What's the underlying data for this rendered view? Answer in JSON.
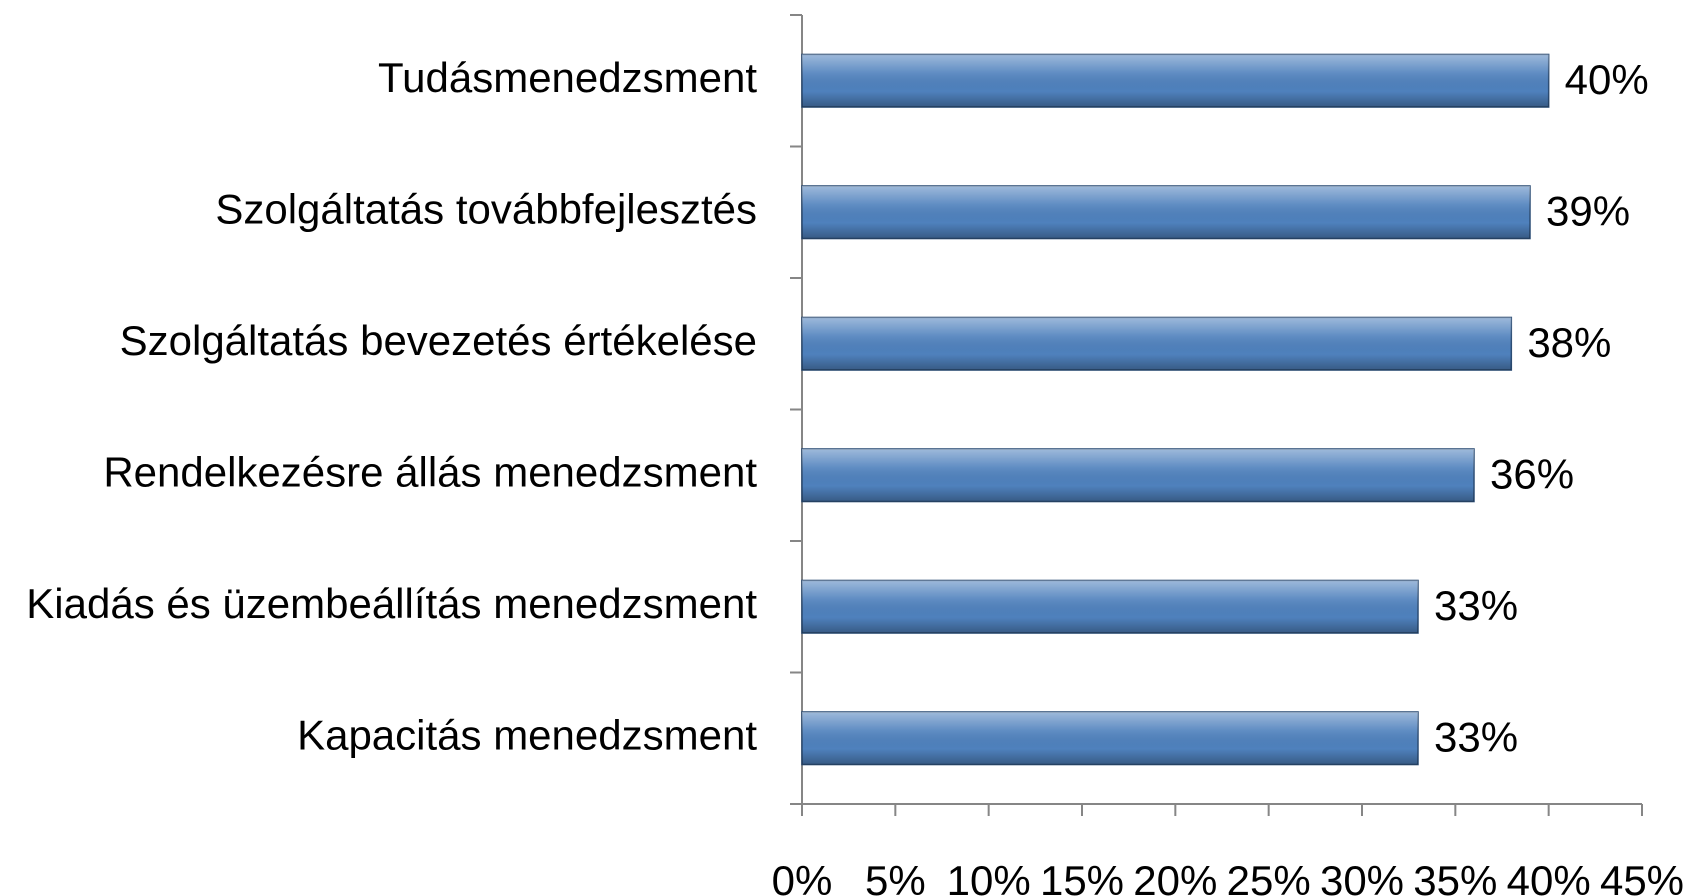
{
  "chart_data": {
    "type": "bar",
    "orientation": "horizontal",
    "categories": [
      "Tudásmenedzsment",
      "Szolgáltatás továbbfejlesztés",
      "Szolgáltatás bevezetés értékelése",
      "Rendelkezésre állás menedzsment",
      "Kiadás és üzembeállítás menedzsment",
      "Kapacitás menedzsment"
    ],
    "values": [
      40,
      39,
      38,
      36,
      33,
      33
    ],
    "value_labels": [
      "40%",
      "39%",
      "38%",
      "36%",
      "33%",
      "33%"
    ],
    "color": "#4f81bd",
    "xlim": [
      0,
      45
    ],
    "xticks": [
      {
        "value": 0,
        "label": "0%"
      },
      {
        "value": 5,
        "label": "5%"
      },
      {
        "value": 10,
        "label": "10%"
      },
      {
        "value": 15,
        "label": "15%"
      },
      {
        "value": 20,
        "label": "20%"
      },
      {
        "value": 25,
        "label": "25%"
      },
      {
        "value": 30,
        "label": "30%"
      },
      {
        "value": 35,
        "label": "35%"
      },
      {
        "value": 40,
        "label": "40%"
      },
      {
        "value": 45,
        "label": "45%"
      }
    ],
    "grid": false
  }
}
